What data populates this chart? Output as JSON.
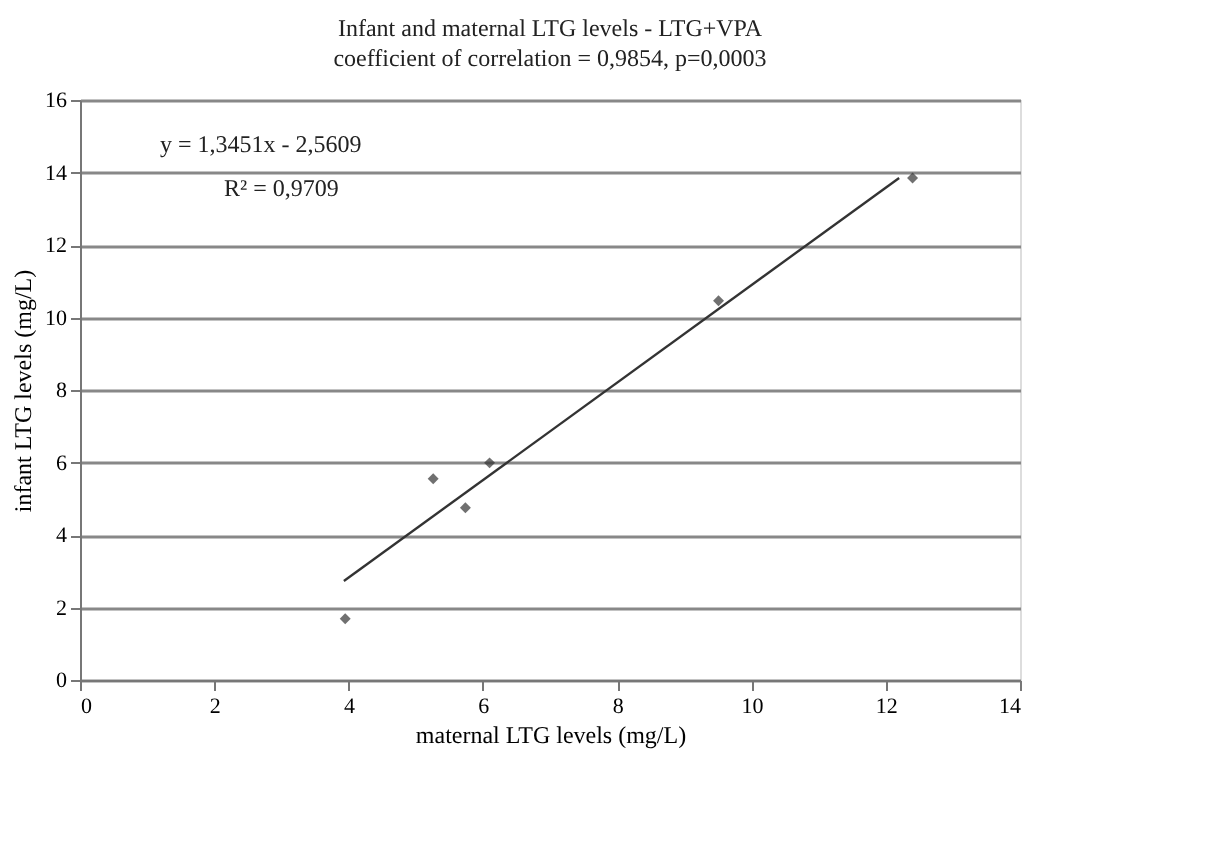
{
  "chart_data": {
    "type": "scatter",
    "title": "Infant and maternal LTG levels - LTG+VPA",
    "subtitle": "coefficient of correlation = 0,9854, p=0,0003",
    "xlabel": "maternal LTG levels (mg/L)",
    "ylabel": "infant LTG levels (mg/L)",
    "x": [
      3.95,
      5.26,
      5.74,
      6.1,
      9.51,
      12.4
    ],
    "series": [
      {
        "color": "#333333",
        "values": [
          1.69,
          5.55,
          4.75,
          5.99,
          10.46,
          13.85
        ]
      },
      {
        "type": "line",
        "marker": "none",
        "line_style": "solid",
        "color": "#333333",
        "x": [
          3.93,
          12.2
        ],
        "values": [
          2.73,
          13.85
        ]
      }
    ],
    "xlim": [
      0,
      14
    ],
    "xticks": [
      0,
      2,
      4,
      6,
      8,
      10,
      12,
      14
    ],
    "ylim": [
      0,
      16
    ],
    "yticks": [
      0,
      2,
      4,
      6,
      8,
      10,
      12,
      14,
      16
    ],
    "grid": "y",
    "marker": "diamond",
    "annotations": [
      "y = 1,3451x - 2,5609",
      "R² = 0,9709"
    ]
  }
}
